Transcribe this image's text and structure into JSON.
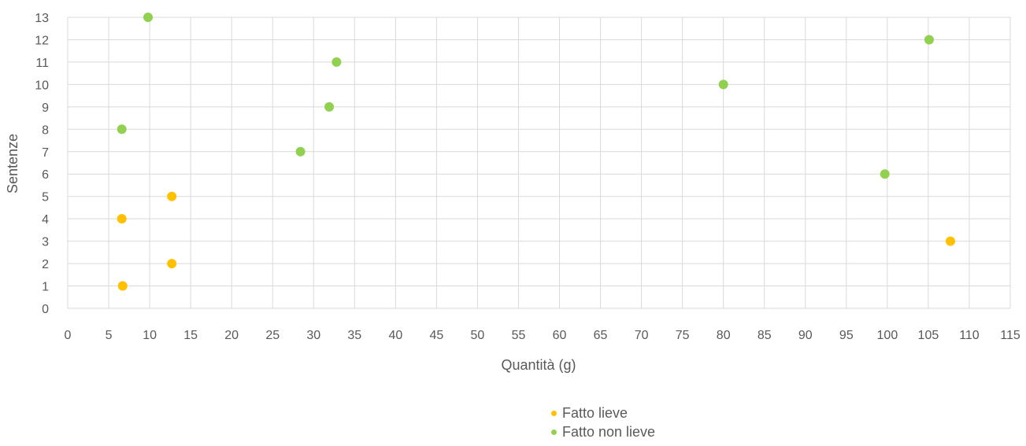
{
  "chart_data": {
    "type": "scatter",
    "title": "",
    "xlabel": "Quantità (g)",
    "ylabel": "Sentenze",
    "xlim": [
      0,
      115
    ],
    "ylim": [
      0,
      13
    ],
    "xticks": [
      0,
      5,
      10,
      15,
      20,
      25,
      30,
      35,
      40,
      45,
      50,
      55,
      60,
      65,
      70,
      75,
      80,
      85,
      90,
      95,
      100,
      105,
      110,
      115
    ],
    "yticks": [
      0,
      1,
      2,
      3,
      4,
      5,
      6,
      7,
      8,
      9,
      10,
      11,
      12,
      13
    ],
    "grid": true,
    "legend_position": "bottom",
    "series": [
      {
        "name": "Fatto lieve",
        "color": "#FFC000",
        "points": [
          {
            "x": 6.7,
            "y": 1
          },
          {
            "x": 12.7,
            "y": 2
          },
          {
            "x": 107.7,
            "y": 3
          },
          {
            "x": 6.6,
            "y": 4
          },
          {
            "x": 12.7,
            "y": 5
          }
        ]
      },
      {
        "name": "Fatto non lieve",
        "color": "#92D050",
        "points": [
          {
            "x": 99.7,
            "y": 6
          },
          {
            "x": 28.4,
            "y": 7
          },
          {
            "x": 6.6,
            "y": 8
          },
          {
            "x": 31.9,
            "y": 9
          },
          {
            "x": 80.0,
            "y": 10
          },
          {
            "x": 32.8,
            "y": 11
          },
          {
            "x": 105.1,
            "y": 12
          },
          {
            "x": 9.8,
            "y": 13
          }
        ]
      }
    ]
  }
}
